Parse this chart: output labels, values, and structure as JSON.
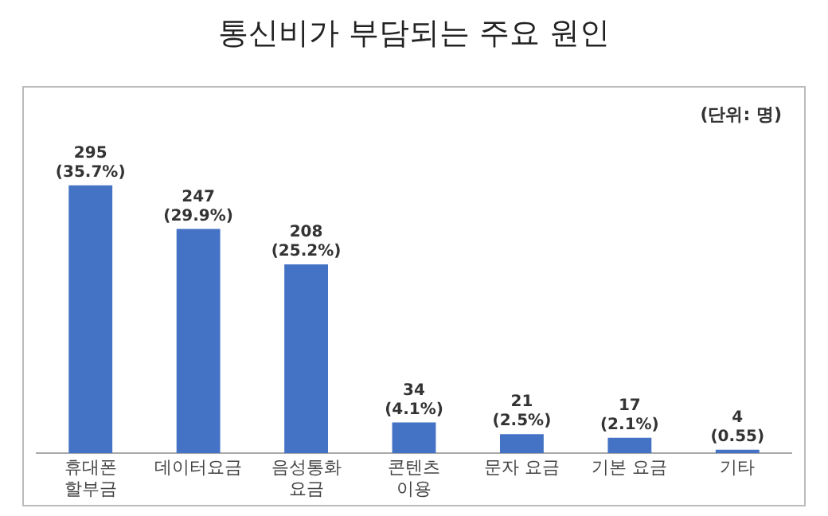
{
  "chart_data": {
    "type": "bar",
    "title": "통신비가 부담되는 주요 원인",
    "categories": [
      "휴대폰\n할부금",
      "데이터요금",
      "음성통화\n요금",
      "콘텐츠\n이용",
      "문자 요금",
      "기본 요금",
      "기타"
    ],
    "values": [
      295,
      247,
      208,
      34,
      21,
      17,
      4
    ],
    "value_labels": [
      "295\n(35.7%)",
      "247\n(29.9%)",
      "208\n(25.2%)",
      "34\n(4.1%)",
      "21\n(2.5%)",
      "17\n(2.1%)",
      "4\n(0.55)"
    ],
    "color": "#4472c4",
    "annotations": [
      "(단위: 명)"
    ],
    "grid": false,
    "legend": false
  }
}
